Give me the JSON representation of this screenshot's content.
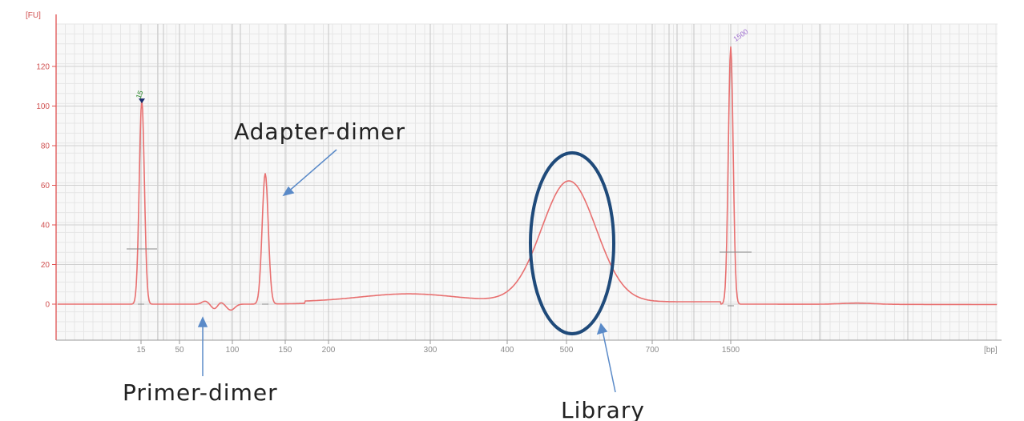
{
  "chart_data": {
    "type": "line",
    "ylabel": "[FU]",
    "xlabel": "[bp]",
    "ylim": [
      -15,
      140
    ],
    "yticks": [
      0,
      20,
      40,
      60,
      80,
      100,
      120
    ],
    "xticks": [
      "15",
      "50",
      "100",
      "150",
      "200",
      "300",
      "400",
      "500",
      "700",
      "1500"
    ],
    "grid": true,
    "series": [
      {
        "color": "#e87070",
        "points": [
          {
            "x": "15",
            "y": 103
          },
          {
            "x": "~75",
            "y": 1
          },
          {
            "x": "~130",
            "y": 66
          },
          {
            "x": "~280",
            "y": 4
          },
          {
            "x": "~510",
            "y": 61
          },
          {
            "x": "1500",
            "y": 130
          }
        ]
      }
    ],
    "peak_markers": [
      {
        "text": "15",
        "color": "#2a8a2a"
      },
      {
        "text": "1500",
        "color": "#a070d0"
      }
    ],
    "annotations": [
      {
        "text": "Adapter-dimer"
      },
      {
        "text": "Primer-dimer"
      },
      {
        "text": "Library"
      }
    ],
    "colors": {
      "trace": "#e87070",
      "axis": "#e05050",
      "grid_fine": "#e4e4e4",
      "grid_major": "#c8c8c8",
      "ellipse": "#1f4a7a",
      "arrow": "#5a8ac8"
    }
  }
}
